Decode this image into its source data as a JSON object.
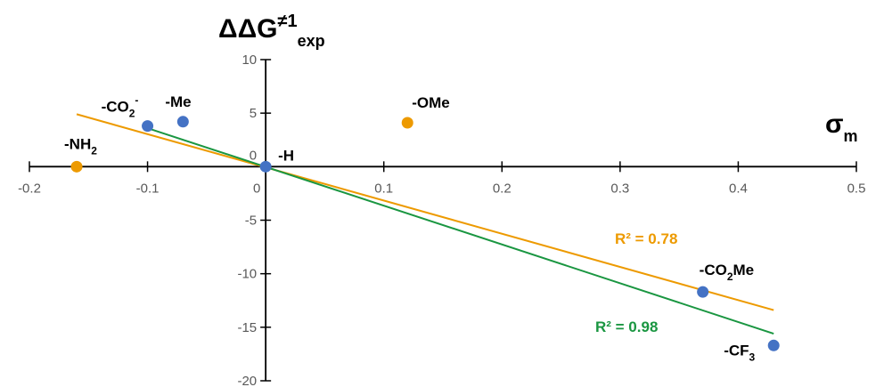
{
  "chart_data": {
    "type": "scatter",
    "title": "",
    "x_axis": {
      "label": "σ",
      "label_subscript": "m",
      "range": [
        -0.2,
        0.5
      ],
      "ticks": [
        "-0.2",
        "-0.1",
        "0",
        "0.1",
        "0.2",
        "0.3",
        "0.4",
        "0.5"
      ]
    },
    "y_axis": {
      "label": "ΔΔG",
      "label_superscript": "≠1",
      "label_subscript": "exp",
      "range": [
        -20,
        10
      ],
      "ticks": [
        "10",
        "5",
        "0",
        "-5",
        "-10",
        "-15",
        "-20"
      ]
    },
    "grid": false,
    "colors": {
      "blue": "#4472C4",
      "orange": "#ED9A00",
      "green": "#1A9641"
    },
    "series": [
      {
        "color": "#4472C4",
        "points": [
          {
            "x": -0.1,
            "y": 3.8,
            "label": "-CO",
            "label_sub": "2",
            "label_sup": "-"
          },
          {
            "x": -0.07,
            "y": 4.2,
            "label": "-Me"
          },
          {
            "x": 0.0,
            "y": 0.0,
            "label": "-H"
          },
          {
            "x": 0.37,
            "y": -11.7,
            "label": "-CO",
            "label_sub": "2",
            "label_tail": "Me"
          },
          {
            "x": 0.43,
            "y": -16.7,
            "label": "-CF",
            "label_sub": "3"
          }
        ]
      },
      {
        "color": "#ED9A00",
        "points": [
          {
            "x": -0.16,
            "y": 0.0,
            "label": "-NH",
            "label_sub": "2"
          },
          {
            "x": 0.12,
            "y": 4.1,
            "label": "-OMe"
          }
        ]
      }
    ],
    "trendlines": [
      {
        "color": "#ED9A00",
        "x": [
          -0.16,
          0.43
        ],
        "y": [
          4.9,
          -13.4
        ],
        "label": "R² = 0.78"
      },
      {
        "color": "#1A9641",
        "x": [
          -0.1,
          0.43
        ],
        "y": [
          3.6,
          -15.6
        ],
        "label": "R² = 0.98"
      }
    ]
  }
}
